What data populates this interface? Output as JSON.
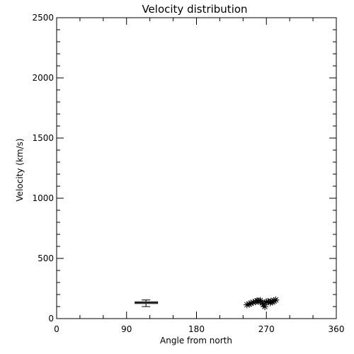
{
  "chart_data": {
    "type": "scatter",
    "title": "Velocity distribution",
    "xlabel": "Angle from north",
    "ylabel": "Velocity (km/s)",
    "xlim": [
      0,
      360
    ],
    "ylim": [
      0,
      2500
    ],
    "x_ticks": [
      "0",
      "90",
      "180",
      "270",
      "360"
    ],
    "x_tick_values": [
      0,
      90,
      180,
      270,
      360
    ],
    "y_ticks": [
      "0",
      "500",
      "1000",
      "1500",
      "2000",
      "2500"
    ],
    "y_tick_values": [
      0,
      500,
      1000,
      1500,
      2000,
      2500
    ],
    "x_minor_step": 30,
    "y_minor_step": 100,
    "grid": false,
    "series": [
      {
        "marker": "asterisk",
        "points": [
          [
            245,
            115
          ],
          [
            248,
            120
          ],
          [
            250,
            128
          ],
          [
            253,
            135
          ],
          [
            256,
            140
          ],
          [
            258,
            148
          ],
          [
            260,
            145
          ],
          [
            262,
            150
          ],
          [
            265,
            130
          ],
          [
            266,
            118
          ],
          [
            268,
            100
          ],
          [
            270,
            138
          ],
          [
            272,
            142
          ],
          [
            275,
            132
          ],
          [
            276,
            145
          ],
          [
            278,
            138
          ],
          [
            280,
            148
          ],
          [
            282,
            155
          ]
        ]
      },
      {
        "marker": "box",
        "box": {
          "x_min": 101,
          "x_max": 130,
          "low": 125,
          "high": 140,
          "whisker_low": 100,
          "whisker_high": 155,
          "x_center": 115
        }
      }
    ]
  }
}
